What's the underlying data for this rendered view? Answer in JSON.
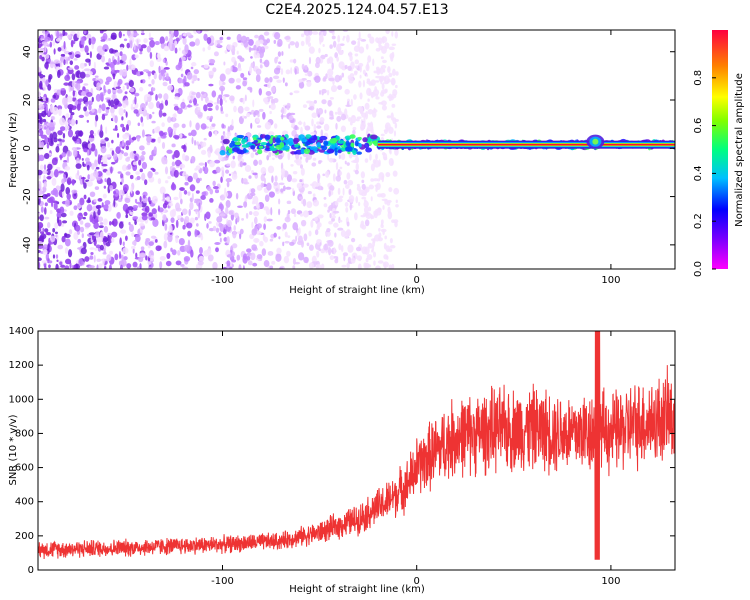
{
  "title": "C2E4.2025.124.04.57.E13",
  "chart_data": [
    {
      "type": "heatmap",
      "xlabel": "Height of straight line (km)",
      "ylabel": "Frequency (Hz)",
      "xlim": [
        -195,
        133
      ],
      "ylim": [
        -50,
        49
      ],
      "xticks": [
        -100,
        0,
        100
      ],
      "yticks": [
        -40,
        -20,
        0,
        20,
        40
      ],
      "grid": false,
      "colorbar": {
        "label": "Normalized spectral amplitude",
        "range": [
          0,
          1
        ],
        "ticks": [
          0.0,
          0.2,
          0.4,
          0.6,
          0.8
        ],
        "tick_labels": [
          "0.0",
          "0.2",
          "0.4",
          "0.6",
          "0.8"
        ],
        "colormap": [
          "#ff00ff",
          "#8000ff",
          "#0000ff",
          "#00c0ff",
          "#00ff80",
          "#80ff00",
          "#ffff00",
          "#ff8000",
          "#ff0040"
        ]
      },
      "features": {
        "noise_region_xrange": [
          -195,
          -20
        ],
        "carrier_frequency_hz": 1.5,
        "carrier_xrange": [
          -100,
          133
        ],
        "solid_line_xrange": [
          -20,
          133
        ],
        "bump_x": 92
      }
    },
    {
      "type": "line",
      "xlabel": "Height of straight line (km)",
      "ylabel": "SNR (10 * v/v)",
      "xlim": [
        -195,
        133
      ],
      "ylim": [
        0,
        1400
      ],
      "xticks": [
        -100,
        0,
        100
      ],
      "yticks": [
        0,
        200,
        400,
        600,
        800,
        1000,
        1200,
        1400
      ],
      "grid": false,
      "series": [
        {
          "color": "#ee3333",
          "profile": {
            "x": [
              -195,
              -150,
              -100,
              -70,
              -50,
              -30,
              -15,
              -5,
              0,
              10,
              20,
              40,
              60,
              80,
              90,
              95,
              100,
              115,
              133
            ],
            "y": [
              120,
              130,
              150,
              170,
              220,
              300,
              400,
              500,
              600,
              700,
              780,
              820,
              830,
              800,
              820,
              820,
              800,
              860,
              900
            ]
          },
          "spike": {
            "x": 93,
            "max": 1400,
            "min": 60
          }
        }
      ]
    }
  ]
}
